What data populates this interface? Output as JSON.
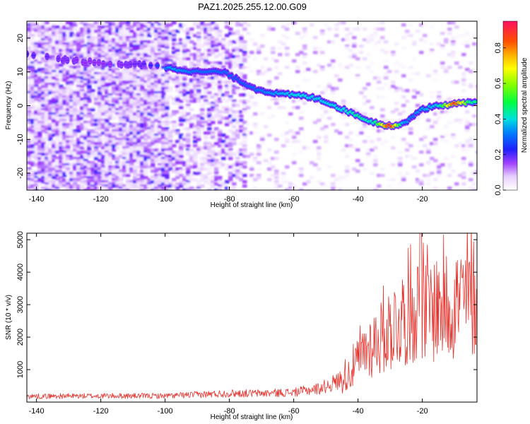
{
  "title": "PAZ1.2025.255.12.00.G09",
  "chart_data": [
    {
      "type": "heatmap",
      "name": "spectrogram",
      "xlabel": "Height of straight line (km)",
      "ylabel": "Frequency (Hz)",
      "xlim": [
        -143,
        -3
      ],
      "ylim": [
        -25,
        25
      ],
      "xticks": [
        -140,
        -120,
        -100,
        -80,
        -60,
        -40,
        -20
      ],
      "yticks": [
        -20,
        -10,
        0,
        10,
        20
      ],
      "signal_track": {
        "x": [
          -143,
          -135,
          -125,
          -115,
          -105,
          -98,
          -90,
          -82,
          -78,
          -72,
          -65,
          -58,
          -52,
          -45,
          -40,
          -35,
          -30,
          -26,
          -23,
          -20,
          -15,
          -10,
          -5,
          -3
        ],
        "freq": [
          15,
          14,
          13,
          12.5,
          12,
          11,
          10,
          10,
          8,
          5,
          3.5,
          3,
          2,
          -1,
          -3,
          -5,
          -6,
          -5.5,
          -3,
          -1,
          0,
          0.5,
          1,
          1.5
        ],
        "amplitude": [
          0.22,
          0.2,
          0.18,
          0.18,
          0.22,
          0.35,
          0.3,
          0.3,
          0.28,
          0.3,
          0.35,
          0.4,
          0.38,
          0.4,
          0.45,
          0.42,
          0.95,
          0.35,
          0.3,
          0.35,
          0.38,
          0.9,
          0.45,
          0.45
        ]
      },
      "colorbar": {
        "label": "Normalized spectral amplitude",
        "range": [
          0,
          0.95
        ],
        "ticks": [
          0.0,
          0.2,
          0.4,
          0.6,
          0.8
        ],
        "tick_labels": [
          "0.0",
          "0.2",
          "0.4",
          "0.6",
          "0.8"
        ]
      }
    },
    {
      "type": "line",
      "name": "snr",
      "xlabel": "Height of straight line (km)",
      "ylabel": "SNR (10 * v/v)",
      "xlim": [
        -143,
        -3
      ],
      "ylim": [
        0,
        5200
      ],
      "xticks": [
        -140,
        -120,
        -100,
        -80,
        -60,
        -40,
        -20
      ],
      "yticks": [
        1000,
        2000,
        3000,
        4000,
        5000
      ],
      "color": "#e8302a",
      "envelope": {
        "x": [
          -143,
          -120,
          -100,
          -90,
          -80,
          -70,
          -60,
          -52,
          -46,
          -42,
          -38,
          -34,
          -30,
          -26,
          -23,
          -21,
          -19,
          -15,
          -10,
          -5,
          -3
        ],
        "y": [
          180,
          190,
          190,
          230,
          270,
          270,
          300,
          420,
          650,
          1100,
          1800,
          2200,
          2600,
          3000,
          3300,
          3400,
          3200,
          3400,
          3500,
          3700,
          3800
        ]
      }
    }
  ]
}
